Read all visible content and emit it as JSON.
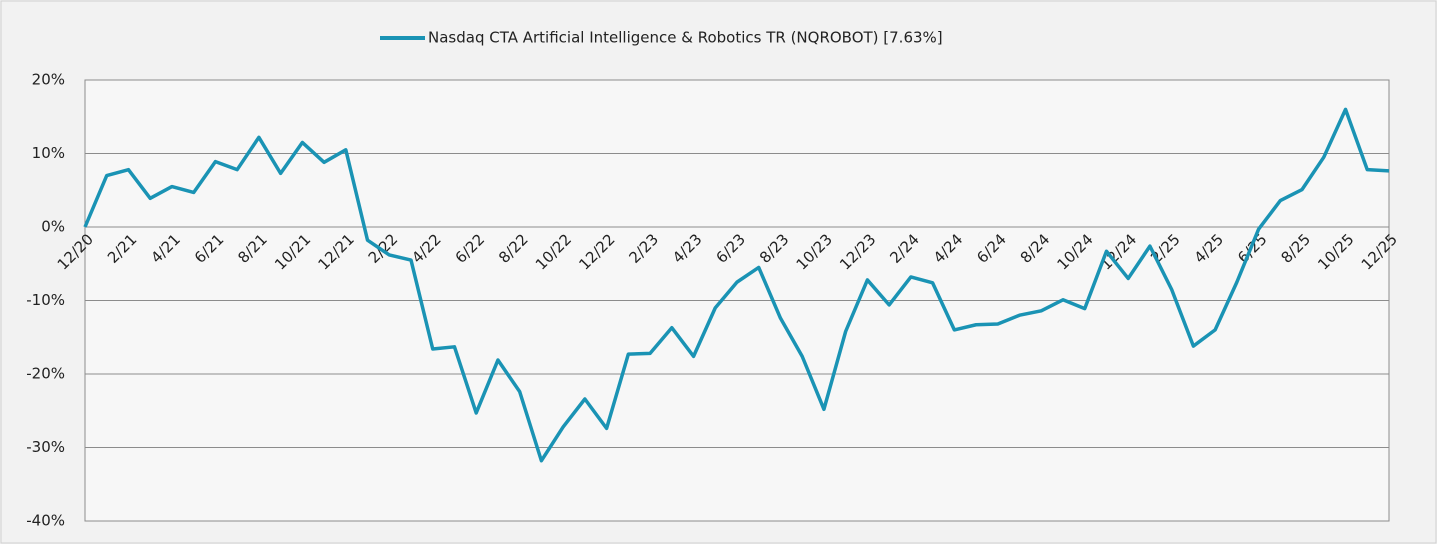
{
  "chart_data": {
    "type": "line",
    "categories": [
      "12/20",
      null,
      "2/21",
      null,
      "4/21",
      null,
      "6/21",
      null,
      "8/21",
      null,
      "10/21",
      null,
      "12/21",
      null,
      "2/22",
      null,
      "4/22",
      null,
      "6/22",
      null,
      "8/22",
      null,
      "10/22",
      null,
      "12/22",
      null,
      "2/23",
      null,
      "4/23",
      null,
      "6/23",
      null,
      "8/23",
      null,
      "10/23",
      null,
      "12/23",
      null,
      "2/24",
      null,
      "4/24",
      null,
      "6/24",
      null,
      "8/24",
      null,
      "10/24",
      null,
      "12/24",
      null,
      "2/25",
      null,
      "4/25",
      null,
      "6/25",
      null,
      "8/25",
      null,
      "10/25",
      null,
      "12/25"
    ],
    "series": [
      {
        "name": "Nasdaq CTA Artificial Intelligence & Robotics TR (NQROBOT) [7.63%]",
        "color": "#1a93b4",
        "values": [
          0,
          7,
          7.8,
          3.9,
          5.5,
          4.7,
          8.9,
          7.8,
          12.2,
          7.3,
          11.5,
          8.8,
          10.5,
          -1.8,
          -3.8,
          -4.5,
          -16.6,
          -16.3,
          -25.3,
          -18.1,
          -22.4,
          -31.8,
          -27.2,
          -23.4,
          -27.4,
          -17.3,
          -17.2,
          -13.7,
          -17.6,
          -11,
          -7.5,
          -5.5,
          -12.4,
          -17.6,
          -24.8,
          -14.2,
          -7.2,
          -10.6,
          -6.8,
          -7.6,
          -14,
          -13.3,
          -13.2,
          -12,
          -11.4,
          -9.9,
          -11.1,
          -3.3,
          -7,
          -2.6,
          -8.5,
          -16.2,
          -14,
          -7.5,
          -0.3,
          3.6,
          5.1,
          9.5,
          16,
          7.8,
          7.63
        ]
      }
    ],
    "ylim": [
      -40,
      20
    ],
    "yticks": [
      {
        "value": -40,
        "label": "-40%"
      },
      {
        "value": -30,
        "label": "-30%"
      },
      {
        "value": -20,
        "label": "-20%"
      },
      {
        "value": -10,
        "label": "-10%"
      },
      {
        "value": 0,
        "label": "0%"
      },
      {
        "value": 10,
        "label": "10%"
      },
      {
        "value": 20,
        "label": "20%"
      }
    ],
    "grid": true,
    "legend": "top"
  }
}
